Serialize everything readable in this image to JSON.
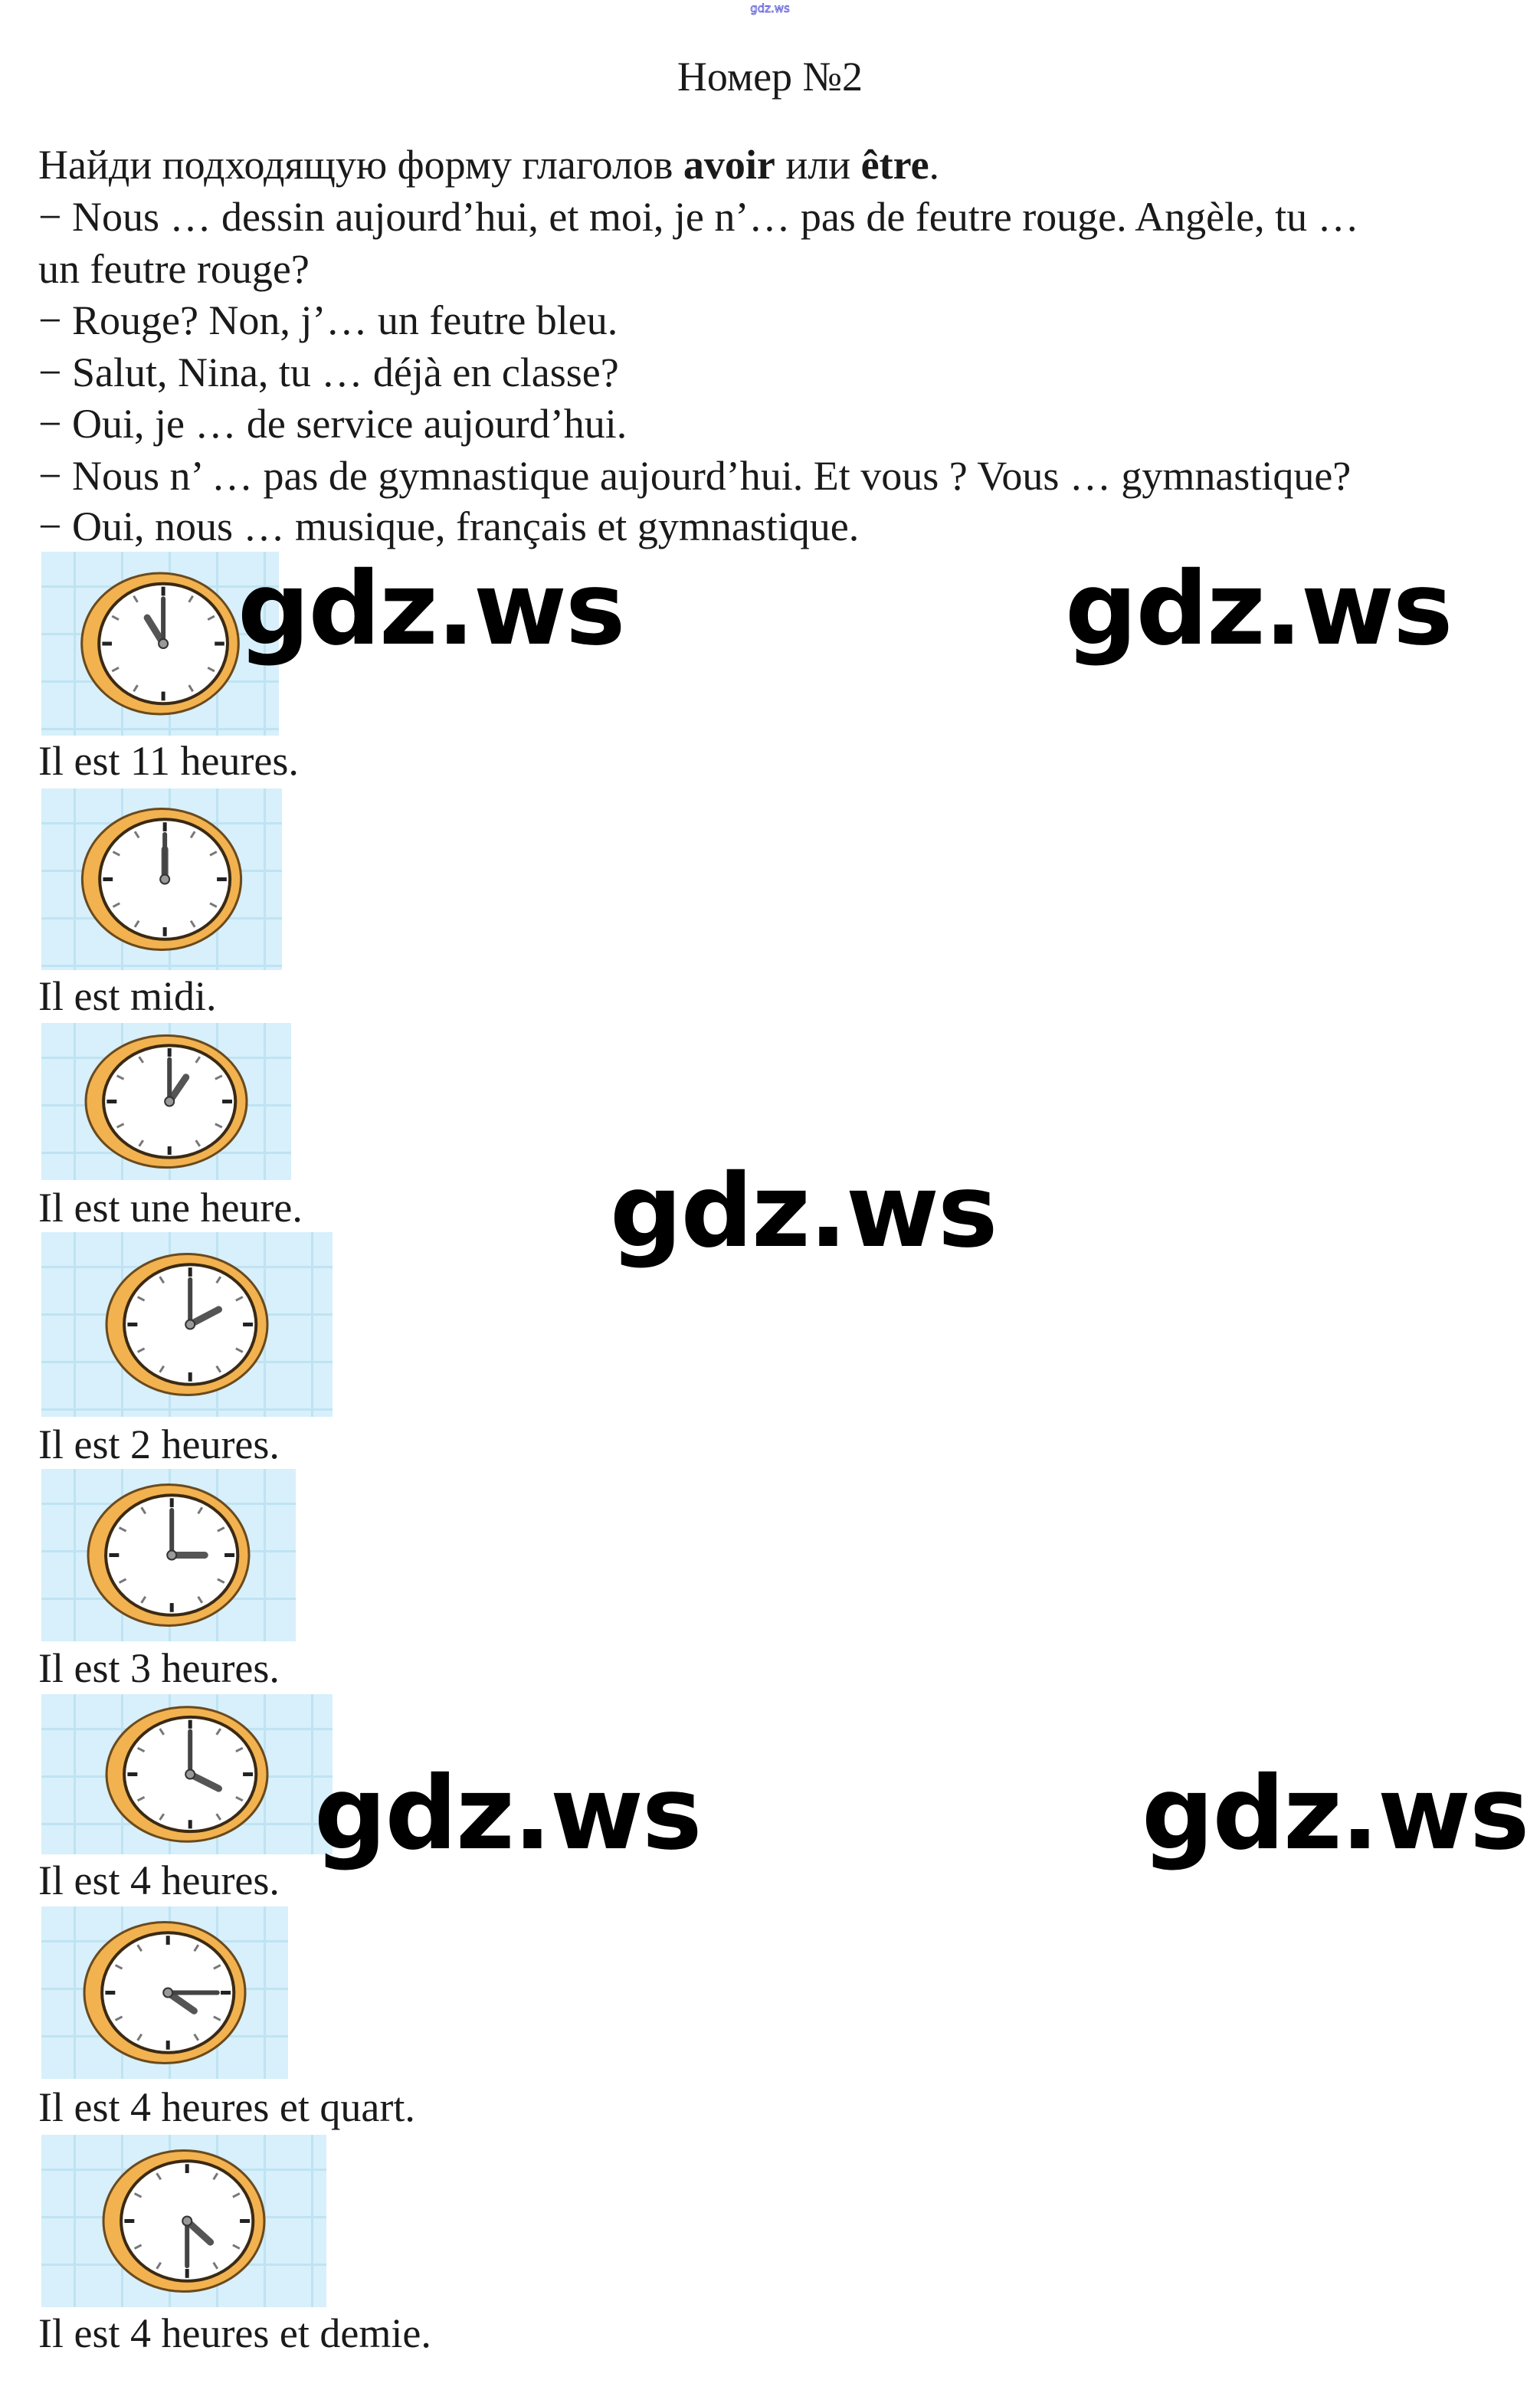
{
  "watermark_small": "gdz.ws",
  "watermark": "gdz.ws",
  "title": "Номер №2",
  "task": {
    "prefix": "Найди подходящую форму глаголов ",
    "verb1": "avoir",
    "middle": " или ",
    "verb2": "être",
    "suffix": "."
  },
  "lines": [
    "− Nous … dessin aujourd’hui, et moi, je n’… pas de feutre rouge. Angèle, tu …",
    "un feutre rouge?",
    "− Rouge? Non, j’… un feutre bleu.",
    "− Salut, Nina, tu … déjà en classe?",
    "− Oui, je … de service aujourd’hui.",
    "− Nous n’ … pas de gymnastique aujourd’hui. Et vous ? Vous … gymnastique?",
    "− Oui, nous … musique, français et gymnastique."
  ],
  "answers": [
    {
      "caption": "Il est 11 heures.",
      "hour": 11,
      "minute": 0
    },
    {
      "caption": "Il est midi.",
      "hour": 12,
      "minute": 0
    },
    {
      "caption": "Il est une heure.",
      "hour": 1,
      "minute": 0
    },
    {
      "caption": "Il est 2 heures.",
      "hour": 2,
      "minute": 0
    },
    {
      "caption": "Il est 3 heures.",
      "hour": 3,
      "minute": 0
    },
    {
      "caption": "Il est 4 heures.",
      "hour": 4,
      "minute": 0
    },
    {
      "caption": "Il est 4 heures et quart.",
      "hour": 4,
      "minute": 15
    },
    {
      "caption": "Il est 4 heures et demie.",
      "hour": 4,
      "minute": 30
    }
  ],
  "colors": {
    "grid_bg": "#d7f0fb",
    "clock_rim": "#f2b24f",
    "text": "#1a1a1a",
    "top_watermark": "#3a3ad0"
  }
}
